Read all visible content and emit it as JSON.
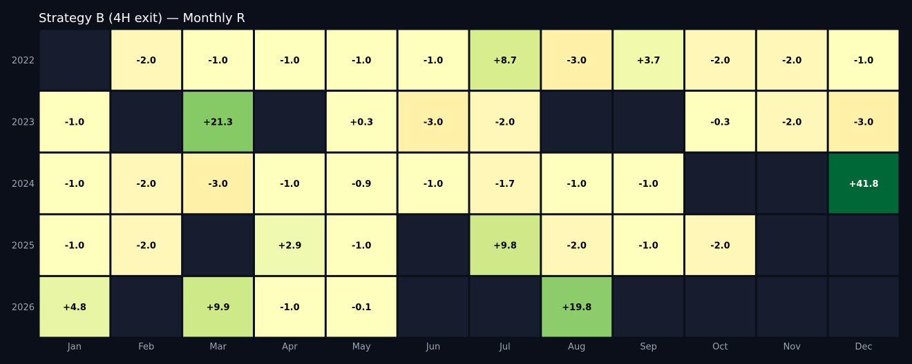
{
  "chart_data": {
    "type": "heatmap",
    "title": "Strategy B (4H exit) — Monthly R",
    "x_categories": [
      "Jan",
      "Feb",
      "Mar",
      "Apr",
      "May",
      "Jun",
      "Jul",
      "Aug",
      "Sep",
      "Oct",
      "Nov",
      "Dec"
    ],
    "y_categories": [
      "2022",
      "2023",
      "2024",
      "2025",
      "2026"
    ],
    "values": [
      [
        null,
        -2.0,
        -1.0,
        -1.0,
        -1.0,
        -1.0,
        8.7,
        -3.0,
        3.7,
        -2.0,
        -2.0,
        -1.0
      ],
      [
        -1.0,
        null,
        21.3,
        null,
        0.3,
        -3.0,
        -2.0,
        null,
        null,
        -0.3,
        -2.0,
        -3.0
      ],
      [
        -1.0,
        -2.0,
        -3.0,
        -1.0,
        -0.9,
        -1.0,
        -1.7,
        -1.0,
        -1.0,
        null,
        null,
        41.8
      ],
      [
        -1.0,
        -2.0,
        null,
        2.9,
        -1.0,
        null,
        9.8,
        -2.0,
        -1.0,
        -2.0,
        null,
        null
      ],
      [
        4.8,
        null,
        9.9,
        -1.0,
        -0.1,
        null,
        null,
        19.8,
        null,
        null,
        null,
        null
      ]
    ],
    "labels": [
      [
        null,
        "-2.0",
        "-1.0",
        "-1.0",
        "-1.0",
        "-1.0",
        "+8.7",
        "-3.0",
        "+3.7",
        "-2.0",
        "-2.0",
        "-1.0"
      ],
      [
        "-1.0",
        null,
        "+21.3",
        null,
        "+0.3",
        "-3.0",
        "-2.0",
        null,
        null,
        "-0.3",
        "-2.0",
        "-3.0"
      ],
      [
        "-1.0",
        "-2.0",
        "-3.0",
        "-1.0",
        "-0.9",
        "-1.0",
        "-1.7",
        "-1.0",
        "-1.0",
        null,
        null,
        "+41.8"
      ],
      [
        "-1.0",
        "-2.0",
        null,
        "+2.9",
        "-1.0",
        null,
        "+9.8",
        "-2.0",
        "-1.0",
        "-2.0",
        null,
        null
      ],
      [
        "+4.8",
        null,
        "+9.9",
        "-1.0",
        "-0.1",
        null,
        null,
        "+19.8",
        null,
        null,
        null,
        null
      ]
    ],
    "colors": [
      [
        null,
        "#fff7b8",
        "#ffffbd",
        "#ffffbd",
        "#ffffbd",
        "#ffffbd",
        "#d8ee8e",
        "#fff1a8",
        "#f0f9ac",
        "#fff7b8",
        "#fff7b8",
        "#ffffbd"
      ],
      [
        "#ffffbd",
        null,
        "#86ca66",
        null,
        "#fefebd",
        "#fff1a8",
        "#fff7b8",
        null,
        null,
        "#ffffbd",
        "#fff7b8",
        "#fff1a8"
      ],
      [
        "#ffffbd",
        "#fff7b8",
        "#fff1a8",
        "#ffffbd",
        "#ffffbd",
        "#ffffbd",
        "#fff7b8",
        "#ffffbd",
        "#ffffbd",
        null,
        null,
        "#006837"
      ],
      [
        "#ffffbd",
        "#fff7b8",
        null,
        "#f0f9b0",
        "#ffffbd",
        null,
        "#cfe989",
        "#fff7b8",
        "#ffffbd",
        "#fff7b8",
        null,
        null
      ],
      [
        "#e8f5a4",
        null,
        "#cde988",
        "#ffffbd",
        "#fefebd",
        null,
        null,
        "#8ccc6a",
        null,
        null,
        null,
        null
      ]
    ],
    "empty_color": "#151d2e",
    "background": "#0b0f19",
    "grid_line_color": "#0b0f19",
    "legend": "none",
    "grid": false
  }
}
